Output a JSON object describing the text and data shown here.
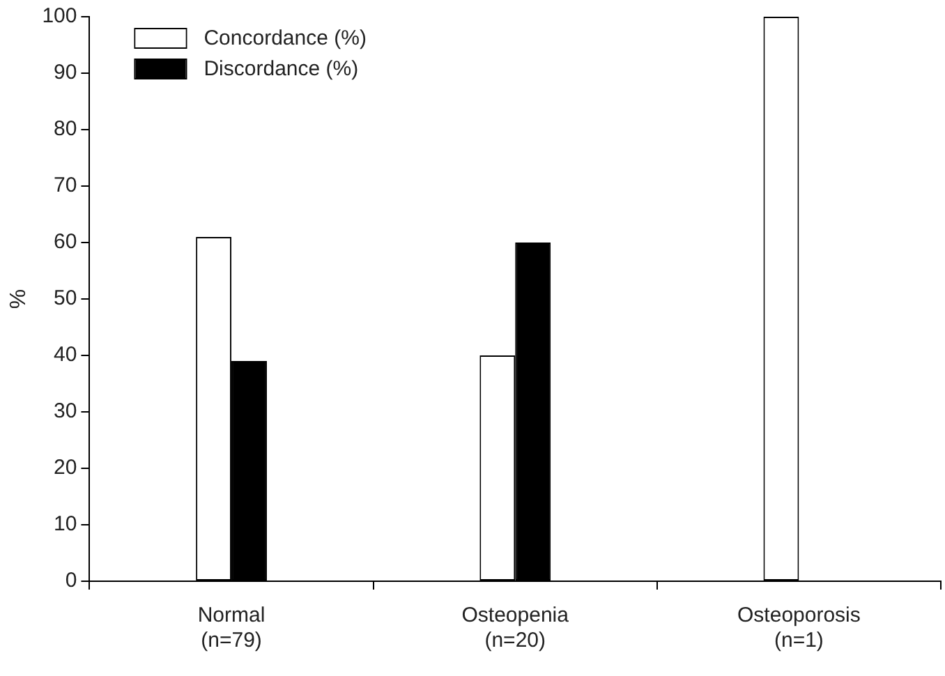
{
  "chart_data": {
    "type": "bar",
    "ylabel": "%",
    "categories": [
      "Normal\n(n=79)",
      "Osteopenia\n(n=20)",
      "Osteoporosis\n(n=1)"
    ],
    "series": [
      {
        "name": "Concordance (%)",
        "color": "#ffffff",
        "values": [
          61,
          40,
          100
        ]
      },
      {
        "name": "Discordance (%)",
        "color": "#000000",
        "values": [
          39,
          60,
          0
        ]
      }
    ],
    "ylim": [
      0,
      100
    ],
    "yticks": [
      0,
      10,
      20,
      30,
      40,
      50,
      60,
      70,
      80,
      90,
      100
    ],
    "grid": false,
    "legend": "top left"
  }
}
